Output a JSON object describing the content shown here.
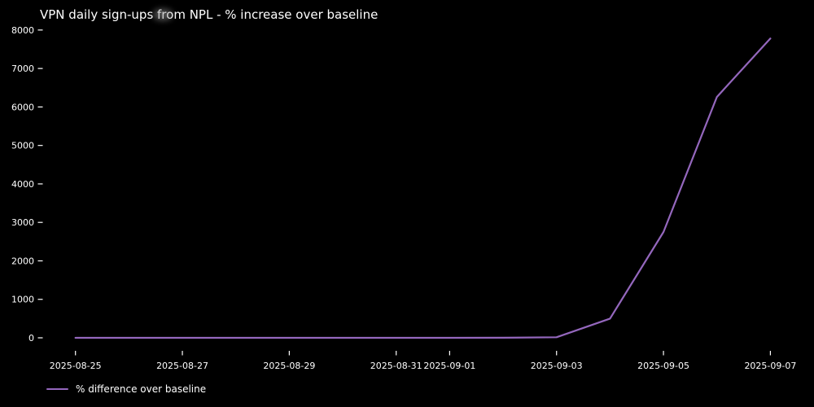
{
  "figure": {
    "background": "#000000",
    "text_color": "#ffffff"
  },
  "chart_data": {
    "type": "line",
    "title": "VPN daily sign-ups from NPL - % increase over baseline",
    "xlabel": "",
    "ylabel": "",
    "x": [
      "2025-08-25",
      "2025-08-26",
      "2025-08-27",
      "2025-08-28",
      "2025-08-29",
      "2025-08-30",
      "2025-08-31",
      "2025-09-01",
      "2025-09-02",
      "2025-09-03",
      "2025-09-04",
      "2025-09-05",
      "2025-09-06",
      "2025-09-07"
    ],
    "series": [
      {
        "name": "% difference over baseline",
        "color": "#9467bd",
        "values": [
          0,
          0,
          1,
          0,
          -1,
          0,
          1,
          0,
          2,
          15,
          500,
          2750,
          6260,
          7780
        ]
      }
    ],
    "x_ticks": [
      {
        "index": 0,
        "label": "2025-08-25"
      },
      {
        "index": 2,
        "label": "2025-08-27"
      },
      {
        "index": 4,
        "label": "2025-08-29"
      },
      {
        "index": 6,
        "label": "2025-08-31"
      },
      {
        "index": 7,
        "label": "2025-09-01"
      },
      {
        "index": 9,
        "label": "2025-09-03"
      },
      {
        "index": 11,
        "label": "2025-09-05"
      },
      {
        "index": 13,
        "label": "2025-09-07"
      }
    ],
    "y_ticks": [
      0,
      1000,
      2000,
      3000,
      4000,
      5000,
      6000,
      7000,
      8000
    ],
    "ylim": [
      -390,
      8170
    ],
    "grid": false,
    "legend_position": "lower-left"
  },
  "legend": {
    "label": "% difference over baseline"
  }
}
